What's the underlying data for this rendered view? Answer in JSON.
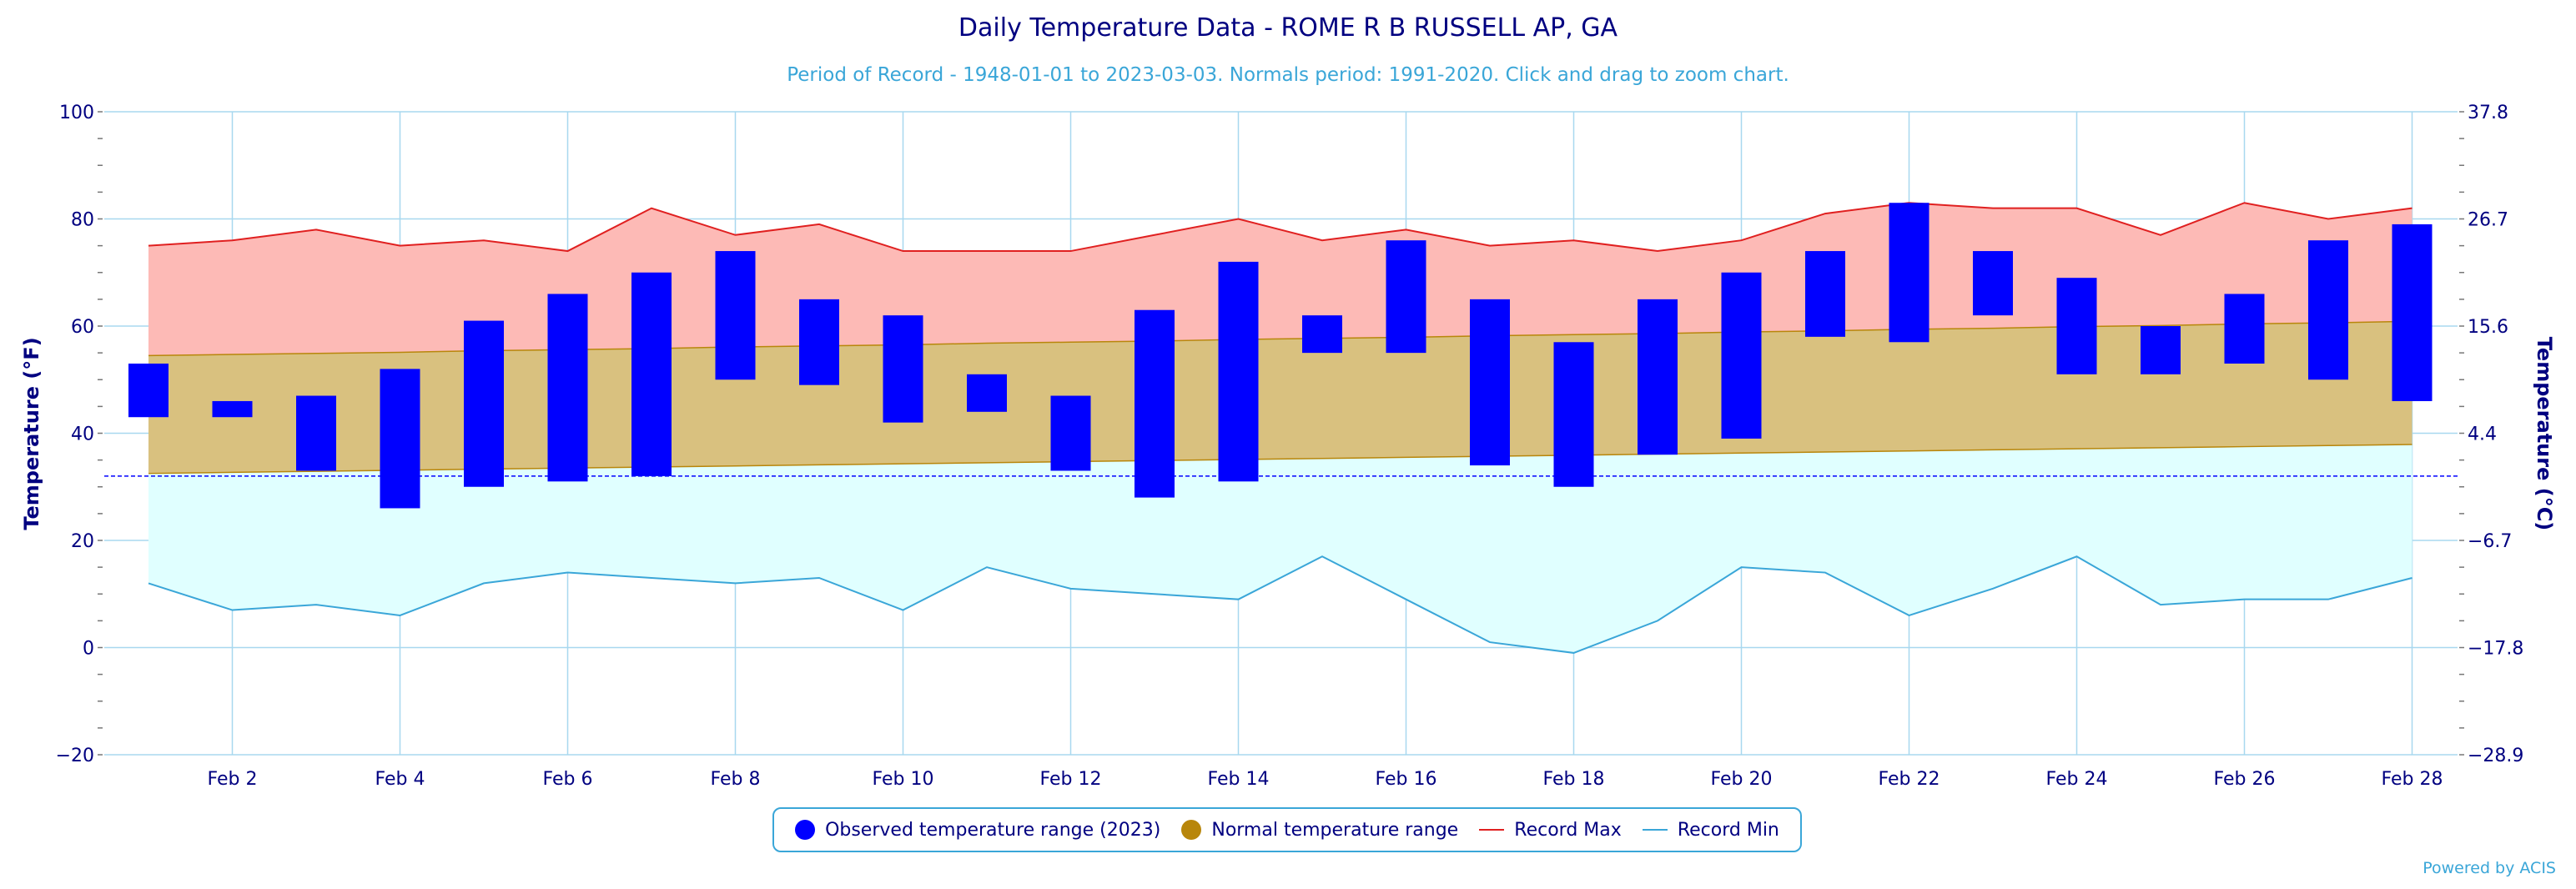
{
  "title": "Daily Temperature Data - ROME R B RUSSELL AP, GA",
  "subtitle": "Period of Record - 1948-01-01 to 2023-03-03. Normals period: 1991-2020. Click and drag to zoom chart.",
  "credit": "Powered by ACIS",
  "legend": {
    "observed": "Observed temperature range (2023)",
    "normal": "Normal temperature range",
    "record_max": "Record Max",
    "record_min": "Record Min"
  },
  "colors": {
    "observed": "#0000ff",
    "normal_fill": "#d9c17f",
    "normal_line": "#b8860b",
    "record_max_line": "#e02020",
    "record_max_fill": "#fdbab6",
    "record_min_line": "#3aa6d8",
    "record_min_fill": "#e0ffff",
    "freezing": "#0000ff",
    "grid": "#a8d8ef"
  },
  "chart_data": {
    "type": "bar",
    "x": [
      "Feb 1",
      "Feb 2",
      "Feb 3",
      "Feb 4",
      "Feb 5",
      "Feb 6",
      "Feb 7",
      "Feb 8",
      "Feb 9",
      "Feb 10",
      "Feb 11",
      "Feb 12",
      "Feb 13",
      "Feb 14",
      "Feb 15",
      "Feb 16",
      "Feb 17",
      "Feb 18",
      "Feb 19",
      "Feb 20",
      "Feb 21",
      "Feb 22",
      "Feb 23",
      "Feb 24",
      "Feb 25",
      "Feb 26",
      "Feb 27",
      "Feb 28"
    ],
    "x_tick_labels": [
      "Feb 2",
      "Feb 4",
      "Feb 6",
      "Feb 8",
      "Feb 10",
      "Feb 12",
      "Feb 14",
      "Feb 16",
      "Feb 18",
      "Feb 20",
      "Feb 22",
      "Feb 24",
      "Feb 26",
      "Feb 28"
    ],
    "ylabel": "Temperature (°F)",
    "y2label": "Temperature (°C)",
    "ylim": [
      -20,
      100
    ],
    "y_ticks": [
      "100",
      "80",
      "60",
      "40",
      "20",
      "0",
      "−20"
    ],
    "y2_ticks": [
      "37.8",
      "26.7",
      "15.6",
      "4.4",
      "−6.7",
      "−17.8",
      "−28.9"
    ],
    "freezing_line": 32,
    "grid": true,
    "legend_position": "bottom",
    "series": [
      {
        "name": "Observed temperature range (2023)",
        "low": [
          43,
          43,
          33,
          26,
          30,
          31,
          32,
          50,
          49,
          42,
          44,
          33,
          28,
          31,
          55,
          55,
          34,
          30,
          36,
          39,
          58,
          57,
          62,
          51,
          51,
          53,
          50,
          46
        ],
        "high": [
          53,
          46,
          47,
          52,
          61,
          66,
          70,
          74,
          65,
          62,
          51,
          47,
          63,
          72,
          62,
          76,
          65,
          57,
          65,
          70,
          74,
          83,
          74,
          69,
          60,
          66,
          76,
          79
        ]
      },
      {
        "name": "Normal temperature range",
        "low": [
          32.5,
          32.7,
          32.9,
          33.1,
          33.3,
          33.5,
          33.7,
          33.9,
          34.1,
          34.3,
          34.5,
          34.7,
          34.9,
          35.1,
          35.3,
          35.5,
          35.7,
          35.9,
          36.1,
          36.3,
          36.5,
          36.7,
          36.9,
          37.1,
          37.3,
          37.5,
          37.7,
          37.9
        ],
        "high": [
          54.5,
          54.7,
          54.9,
          55.1,
          55.4,
          55.6,
          55.8,
          56.1,
          56.3,
          56.5,
          56.8,
          57.0,
          57.2,
          57.5,
          57.7,
          57.9,
          58.2,
          58.4,
          58.6,
          58.9,
          59.1,
          59.4,
          59.6,
          59.9,
          60.1,
          60.4,
          60.6,
          60.9
        ]
      },
      {
        "name": "Record Max",
        "values": [
          75,
          76,
          78,
          75,
          76,
          74,
          82,
          77,
          79,
          74,
          74,
          74,
          77,
          80,
          76,
          78,
          75,
          76,
          74,
          76,
          81,
          83,
          82,
          82,
          77,
          83,
          80,
          82
        ]
      },
      {
        "name": "Record Min",
        "values": [
          12,
          7,
          8,
          6,
          12,
          14,
          13,
          12,
          13,
          7,
          15,
          11,
          10,
          9,
          17,
          9,
          1,
          -1,
          5,
          15,
          14,
          6,
          11,
          17,
          8,
          9,
          9,
          13
        ]
      }
    ]
  }
}
